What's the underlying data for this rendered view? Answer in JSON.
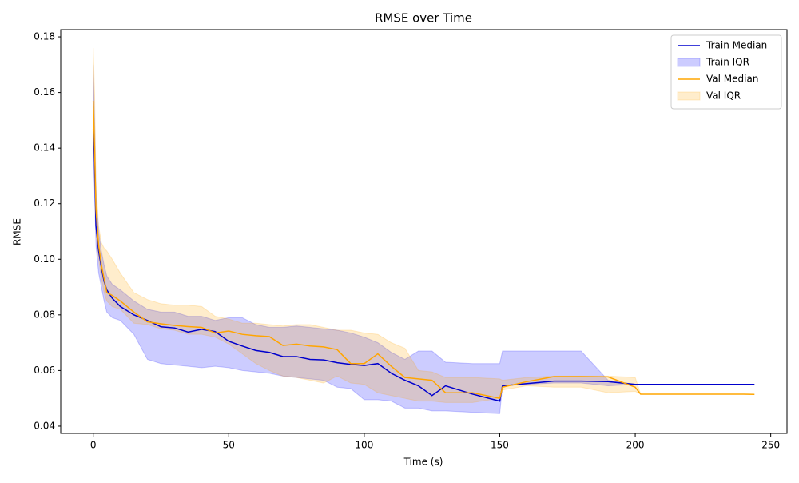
{
  "chart_data": {
    "type": "line-band",
    "title": "RMSE over Time",
    "x_label": "Time (s)",
    "y_label": "RMSE",
    "x": [
      0,
      0.5,
      1,
      2,
      3,
      4,
      5,
      7,
      10,
      15,
      20,
      25,
      30,
      35,
      40,
      45,
      50,
      55,
      60,
      65,
      70,
      75,
      80,
      85,
      90,
      95,
      100,
      105,
      110,
      115,
      120,
      125,
      130,
      140,
      150,
      151,
      160,
      170,
      180,
      190,
      200,
      202,
      210,
      220,
      230,
      240,
      244
    ],
    "series": [
      {
        "name": "Train Median",
        "color": "#0000cd",
        "values": [
          0.147,
          0.135,
          0.112,
          0.103,
          0.097,
          0.092,
          0.089,
          0.086,
          0.083,
          0.08,
          0.078,
          0.0757,
          0.0753,
          0.0738,
          0.0748,
          0.074,
          0.0705,
          0.0688,
          0.0672,
          0.0665,
          0.065,
          0.065,
          0.064,
          0.0638,
          0.0628,
          0.0622,
          0.0618,
          0.0625,
          0.059,
          0.0565,
          0.0545,
          0.051,
          0.0545,
          0.0515,
          0.049,
          0.0545,
          0.0553,
          0.0562,
          0.0562,
          0.056,
          0.055,
          0.055,
          0.055,
          0.055,
          0.055,
          0.055,
          0.055
        ]
      },
      {
        "name": "Train IQR",
        "color": "#0000ff",
        "opacity": 0.2,
        "lower": [
          0.135,
          0.125,
          0.105,
          0.095,
          0.09,
          0.085,
          0.081,
          0.079,
          0.078,
          0.073,
          0.064,
          0.0625,
          0.062,
          0.0615,
          0.061,
          0.0615,
          0.061,
          0.06,
          0.0595,
          0.059,
          0.058,
          0.0575,
          0.057,
          0.0565,
          0.054,
          0.0535,
          0.0495,
          0.0495,
          0.049,
          0.0465,
          0.0465,
          0.0455,
          0.0455,
          0.045,
          0.0445,
          0.0545,
          0.055,
          0.0555,
          0.0555,
          0.0545,
          0.055,
          0.055,
          0.055,
          0.055,
          0.055,
          0.055,
          0.055
        ],
        "upper": [
          0.17,
          0.15,
          0.125,
          0.11,
          0.103,
          0.098,
          0.094,
          0.091,
          0.089,
          0.085,
          0.082,
          0.081,
          0.081,
          0.0795,
          0.0795,
          0.078,
          0.079,
          0.079,
          0.0765,
          0.0755,
          0.0755,
          0.076,
          0.0755,
          0.075,
          0.0745,
          0.0735,
          0.072,
          0.07,
          0.0665,
          0.064,
          0.067,
          0.067,
          0.063,
          0.0625,
          0.0625,
          0.067,
          0.067,
          0.067,
          0.067,
          0.0565,
          0.055,
          0.055,
          0.055,
          0.055,
          0.055,
          0.055,
          0.055
        ]
      },
      {
        "name": "Val Median",
        "color": "#ffa500",
        "values": [
          0.157,
          0.14,
          0.118,
          0.105,
          0.098,
          0.093,
          0.088,
          0.087,
          0.085,
          0.081,
          0.0775,
          0.0768,
          0.0762,
          0.0758,
          0.0755,
          0.0735,
          0.0742,
          0.073,
          0.0725,
          0.0722,
          0.069,
          0.0695,
          0.0688,
          0.0685,
          0.0675,
          0.0625,
          0.0625,
          0.066,
          0.0615,
          0.0575,
          0.057,
          0.0565,
          0.052,
          0.052,
          0.05,
          0.054,
          0.056,
          0.0578,
          0.0578,
          0.0577,
          0.054,
          0.0515,
          0.0515,
          0.0515,
          0.0515,
          0.0515,
          0.0514
        ]
      },
      {
        "name": "Val IQR",
        "color": "#ffa500",
        "opacity": 0.2,
        "lower": [
          0.142,
          0.13,
          0.11,
          0.1,
          0.093,
          0.088,
          0.085,
          0.083,
          0.082,
          0.077,
          0.0765,
          0.075,
          0.0745,
          0.073,
          0.073,
          0.072,
          0.0695,
          0.066,
          0.0625,
          0.06,
          0.058,
          0.0575,
          0.0565,
          0.0555,
          0.058,
          0.0555,
          0.055,
          0.052,
          0.051,
          0.05,
          0.049,
          0.049,
          0.0485,
          0.0485,
          0.05,
          0.053,
          0.0545,
          0.054,
          0.054,
          0.052,
          0.0525,
          0.0515,
          0.0515,
          0.0515,
          0.0515,
          0.0515,
          0.0514
        ],
        "upper": [
          0.176,
          0.16,
          0.128,
          0.112,
          0.106,
          0.104,
          0.103,
          0.1,
          0.095,
          0.088,
          0.0855,
          0.084,
          0.0835,
          0.0835,
          0.083,
          0.0795,
          0.0785,
          0.077,
          0.077,
          0.0765,
          0.076,
          0.0765,
          0.0765,
          0.0755,
          0.0745,
          0.0745,
          0.0735,
          0.073,
          0.07,
          0.068,
          0.06,
          0.0595,
          0.0575,
          0.0575,
          0.057,
          0.0565,
          0.0575,
          0.058,
          0.058,
          0.058,
          0.0575,
          0.0515,
          0.0515,
          0.0515,
          0.0515,
          0.0515,
          0.0514
        ]
      }
    ],
    "xlim": [
      -12,
      256
    ],
    "xticks": [
      0,
      50,
      100,
      150,
      200,
      250
    ],
    "ylim": [
      0.0374,
      0.1826
    ],
    "yticks": [
      0.04,
      0.06,
      0.08,
      {
        "value": 0.1,
        "label": "0.10"
      },
      0.12,
      0.14,
      0.16,
      0.18
    ],
    "legend": "upper right"
  }
}
